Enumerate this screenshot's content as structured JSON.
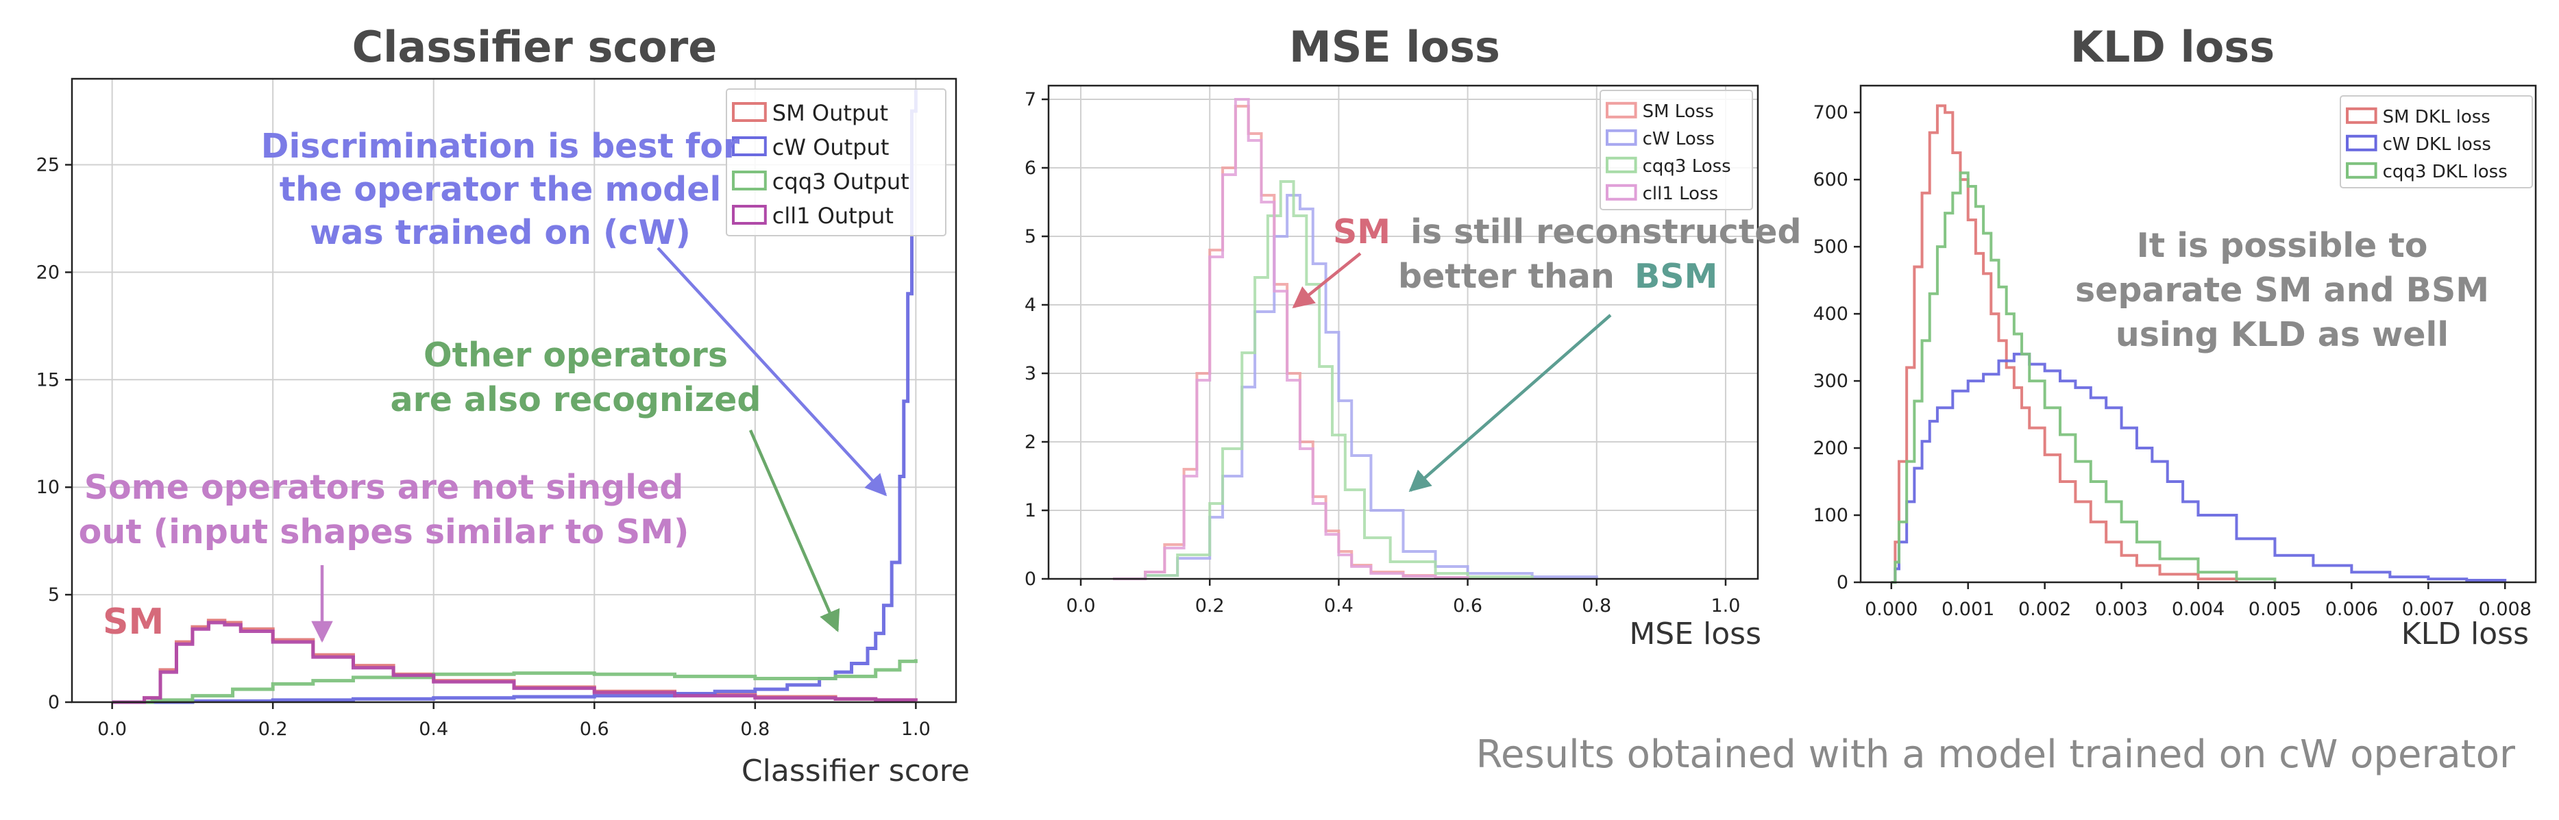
{
  "colors": {
    "sm": "#e07a7a",
    "cw": "#6a6ae0",
    "cqq3": "#7ec27e",
    "cll1": "#d08ad0",
    "blue_annot": "#7b7be6",
    "green_annot": "#6aa86a",
    "purple_annot": "#c27ec8",
    "red_annot": "#d66a7a",
    "grey_annot": "#8a8a8a",
    "teal_annot": "#5c9e92"
  },
  "panels": {
    "classifier": {
      "title": "Classifier score",
      "xlabel": "Classifier score",
      "annotations": {
        "discrimination": [
          "Discrimination is best for",
          "the operator the model",
          "was trained on (cW)"
        ],
        "other": [
          "Other operators",
          "are also recognized"
        ],
        "some": [
          "Some operators are not singled",
          "out (input shapes similar to SM)"
        ],
        "sm": "SM"
      }
    },
    "mse": {
      "title": "MSE loss",
      "xlabel": "MSE loss",
      "annotations": {
        "sm_word": "SM",
        "line1_rest": "is still reconstructed",
        "line2_pre": "better than",
        "bsm_word": "BSM"
      }
    },
    "kld": {
      "title": "KLD loss",
      "xlabel": "KLD loss",
      "annotations": {
        "text": [
          "It is possible to",
          "separate SM and BSM",
          "using KLD as well"
        ]
      }
    }
  },
  "footer": "Results obtained with a model trained on cW operator",
  "chart_data": [
    {
      "type": "step-histogram",
      "title": "Classifier score",
      "xlabel": "Classifier score",
      "ylabel": "",
      "xlim": [
        -0.05,
        1.05
      ],
      "ylim": [
        0,
        29
      ],
      "xticks": [
        "0.0",
        "0.2",
        "0.4",
        "0.6",
        "0.8",
        "1.0"
      ],
      "yticks": [
        "0",
        "5",
        "10",
        "15",
        "20",
        "25"
      ],
      "xtick_values": [
        0,
        0.2,
        0.4,
        0.6,
        0.8,
        1.0
      ],
      "ytick_values": [
        0,
        5,
        10,
        15,
        20,
        25
      ],
      "grid": true,
      "legend_position": "top-right",
      "series": [
        {
          "name": "SM Output",
          "color": "#e07a7a",
          "x": [
            0.0,
            0.04,
            0.06,
            0.08,
            0.1,
            0.12,
            0.14,
            0.16,
            0.2,
            0.25,
            0.3,
            0.35,
            0.4,
            0.5,
            0.6,
            0.7,
            0.8,
            0.9,
            0.95,
            1.0
          ],
          "y": [
            0,
            0.2,
            1.5,
            2.8,
            3.5,
            3.8,
            3.7,
            3.4,
            2.9,
            2.2,
            1.7,
            1.3,
            1.0,
            0.7,
            0.5,
            0.35,
            0.25,
            0.15,
            0.1,
            0.05
          ]
        },
        {
          "name": "cW Output",
          "color": "#6a6ae0",
          "x": [
            0.0,
            0.1,
            0.2,
            0.3,
            0.4,
            0.5,
            0.6,
            0.7,
            0.75,
            0.8,
            0.84,
            0.88,
            0.9,
            0.92,
            0.94,
            0.95,
            0.96,
            0.97,
            0.98,
            0.985,
            0.99,
            0.995,
            1.0
          ],
          "y": [
            0,
            0.05,
            0.1,
            0.15,
            0.2,
            0.25,
            0.3,
            0.4,
            0.5,
            0.6,
            0.8,
            1.1,
            1.4,
            1.8,
            2.5,
            3.2,
            4.5,
            6.5,
            10.5,
            14.0,
            19.0,
            27.5,
            28.5
          ]
        },
        {
          "name": "cqq3 Output",
          "color": "#7ec27e",
          "x": [
            0.0,
            0.05,
            0.1,
            0.15,
            0.2,
            0.25,
            0.3,
            0.4,
            0.5,
            0.6,
            0.7,
            0.8,
            0.85,
            0.9,
            0.95,
            0.98,
            1.0
          ],
          "y": [
            0,
            0.1,
            0.3,
            0.6,
            0.85,
            1.0,
            1.15,
            1.3,
            1.35,
            1.3,
            1.2,
            1.1,
            1.1,
            1.2,
            1.5,
            1.9,
            2.0
          ]
        },
        {
          "name": "cll1 Output",
          "color": "#b04aa8",
          "x": [
            0.0,
            0.04,
            0.06,
            0.08,
            0.1,
            0.12,
            0.14,
            0.16,
            0.2,
            0.25,
            0.3,
            0.35,
            0.4,
            0.5,
            0.6,
            0.7,
            0.8,
            0.9,
            0.95,
            1.0
          ],
          "y": [
            0,
            0.2,
            1.4,
            2.7,
            3.4,
            3.7,
            3.6,
            3.3,
            2.8,
            2.1,
            1.6,
            1.25,
            0.95,
            0.65,
            0.45,
            0.3,
            0.2,
            0.15,
            0.1,
            0.05
          ]
        }
      ]
    },
    {
      "type": "step-histogram",
      "title": "MSE loss",
      "xlabel": "MSE loss",
      "ylabel": "",
      "xlim": [
        -0.05,
        1.05
      ],
      "ylim": [
        0,
        7.2
      ],
      "xticks": [
        "0.0",
        "0.2",
        "0.4",
        "0.6",
        "0.8",
        "1.0"
      ],
      "yticks": [
        "0",
        "1",
        "2",
        "3",
        "4",
        "5",
        "6",
        "7"
      ],
      "xtick_values": [
        0,
        0.2,
        0.4,
        0.6,
        0.8,
        1.0
      ],
      "ytick_values": [
        0,
        1,
        2,
        3,
        4,
        5,
        6,
        7
      ],
      "grid": true,
      "legend_position": "top-right",
      "series": [
        {
          "name": "SM Loss",
          "color": "#f0a0a0",
          "x": [
            0.05,
            0.1,
            0.13,
            0.16,
            0.18,
            0.2,
            0.22,
            0.24,
            0.26,
            0.28,
            0.3,
            0.32,
            0.34,
            0.36,
            0.38,
            0.4,
            0.42,
            0.45,
            0.5,
            0.55,
            0.6
          ],
          "y": [
            0,
            0.1,
            0.5,
            1.6,
            3.0,
            4.8,
            6.0,
            6.9,
            6.5,
            5.6,
            4.3,
            3.0,
            2.0,
            1.2,
            0.7,
            0.4,
            0.2,
            0.1,
            0.05,
            0.02,
            0
          ]
        },
        {
          "name": "cW Loss",
          "color": "#a8a8f0",
          "x": [
            0.05,
            0.1,
            0.15,
            0.2,
            0.22,
            0.25,
            0.27,
            0.3,
            0.32,
            0.34,
            0.36,
            0.38,
            0.4,
            0.42,
            0.45,
            0.5,
            0.55,
            0.6,
            0.7,
            0.8
          ],
          "y": [
            0,
            0.05,
            0.3,
            0.9,
            1.5,
            2.8,
            3.9,
            5.0,
            5.6,
            5.4,
            4.6,
            3.6,
            2.6,
            1.8,
            1.0,
            0.4,
            0.18,
            0.08,
            0.03,
            0
          ]
        },
        {
          "name": "cqq3 Loss",
          "color": "#a8dca8",
          "x": [
            0.05,
            0.1,
            0.15,
            0.2,
            0.22,
            0.25,
            0.27,
            0.29,
            0.31,
            0.33,
            0.35,
            0.37,
            0.39,
            0.41,
            0.44,
            0.48,
            0.55,
            0.6,
            0.7
          ],
          "y": [
            0,
            0.05,
            0.35,
            1.1,
            1.9,
            3.3,
            4.4,
            5.3,
            5.8,
            5.3,
            4.3,
            3.1,
            2.1,
            1.3,
            0.6,
            0.25,
            0.08,
            0.03,
            0
          ]
        },
        {
          "name": "cll1 Loss",
          "color": "#e0a0d8",
          "x": [
            0.05,
            0.1,
            0.13,
            0.16,
            0.18,
            0.2,
            0.22,
            0.24,
            0.26,
            0.28,
            0.3,
            0.32,
            0.34,
            0.36,
            0.38,
            0.4,
            0.42,
            0.45,
            0.5,
            0.55,
            0.6
          ],
          "y": [
            0,
            0.1,
            0.45,
            1.5,
            2.9,
            4.7,
            5.9,
            7.0,
            6.4,
            5.5,
            4.2,
            2.9,
            1.9,
            1.1,
            0.65,
            0.35,
            0.18,
            0.08,
            0.04,
            0.02,
            0
          ]
        }
      ]
    },
    {
      "type": "step-histogram",
      "title": "KLD loss",
      "xlabel": "KLD loss",
      "ylabel": "",
      "xlim": [
        -0.0004,
        0.0084
      ],
      "ylim": [
        0,
        740
      ],
      "xticks": [
        "0.000",
        "0.001",
        "0.002",
        "0.003",
        "0.004",
        "0.005",
        "0.006",
        "0.007",
        "0.008"
      ],
      "yticks": [
        "0",
        "100",
        "200",
        "300",
        "400",
        "500",
        "600",
        "700"
      ],
      "xtick_values": [
        0,
        0.001,
        0.002,
        0.003,
        0.004,
        0.005,
        0.006,
        0.007,
        0.008
      ],
      "ytick_values": [
        0,
        100,
        200,
        300,
        400,
        500,
        600,
        700
      ],
      "grid": false,
      "legend_position": "top-right",
      "series": [
        {
          "name": "SM DKL loss",
          "color": "#e07a7a",
          "x": [
            0.0,
            5e-05,
            0.0001,
            0.0002,
            0.0003,
            0.0004,
            0.0005,
            0.0006,
            0.0007,
            0.0008,
            0.0009,
            0.001,
            0.0011,
            0.0012,
            0.0013,
            0.0014,
            0.0015,
            0.0016,
            0.0017,
            0.0018,
            0.002,
            0.0022,
            0.0024,
            0.0026,
            0.0028,
            0.003,
            0.0032,
            0.0035,
            0.004,
            0.0045
          ],
          "y": [
            0,
            60,
            180,
            320,
            470,
            580,
            670,
            710,
            700,
            640,
            600,
            540,
            490,
            460,
            400,
            360,
            320,
            290,
            260,
            230,
            190,
            150,
            120,
            90,
            60,
            40,
            25,
            12,
            5,
            0
          ]
        },
        {
          "name": "cW DKL loss",
          "color": "#6a6ae0",
          "x": [
            0.0,
            5e-05,
            0.0001,
            0.0002,
            0.0003,
            0.0004,
            0.0005,
            0.0006,
            0.0008,
            0.001,
            0.0012,
            0.0014,
            0.0016,
            0.0018,
            0.002,
            0.0022,
            0.0024,
            0.0026,
            0.0028,
            0.003,
            0.0032,
            0.0034,
            0.0036,
            0.0038,
            0.004,
            0.0045,
            0.005,
            0.0055,
            0.006,
            0.0065,
            0.007,
            0.0075,
            0.008
          ],
          "y": [
            0,
            20,
            60,
            120,
            170,
            210,
            240,
            260,
            285,
            300,
            310,
            330,
            340,
            325,
            315,
            300,
            290,
            275,
            260,
            230,
            200,
            180,
            150,
            120,
            100,
            65,
            40,
            25,
            15,
            8,
            5,
            3,
            0
          ]
        },
        {
          "name": "cqq3 DKL loss",
          "color": "#7ec27e",
          "x": [
            0.0,
            5e-05,
            0.0001,
            0.0002,
            0.0003,
            0.0004,
            0.0005,
            0.0006,
            0.0007,
            0.0008,
            0.0009,
            0.001,
            0.0011,
            0.0012,
            0.0013,
            0.0014,
            0.0015,
            0.0016,
            0.0017,
            0.0018,
            0.002,
            0.0022,
            0.0024,
            0.0026,
            0.0028,
            0.003,
            0.0032,
            0.0035,
            0.004,
            0.0045,
            0.005
          ],
          "y": [
            0,
            30,
            90,
            180,
            270,
            360,
            430,
            500,
            550,
            580,
            610,
            590,
            560,
            520,
            480,
            440,
            400,
            370,
            340,
            300,
            260,
            220,
            180,
            150,
            120,
            90,
            60,
            35,
            15,
            5,
            0
          ]
        }
      ]
    }
  ]
}
